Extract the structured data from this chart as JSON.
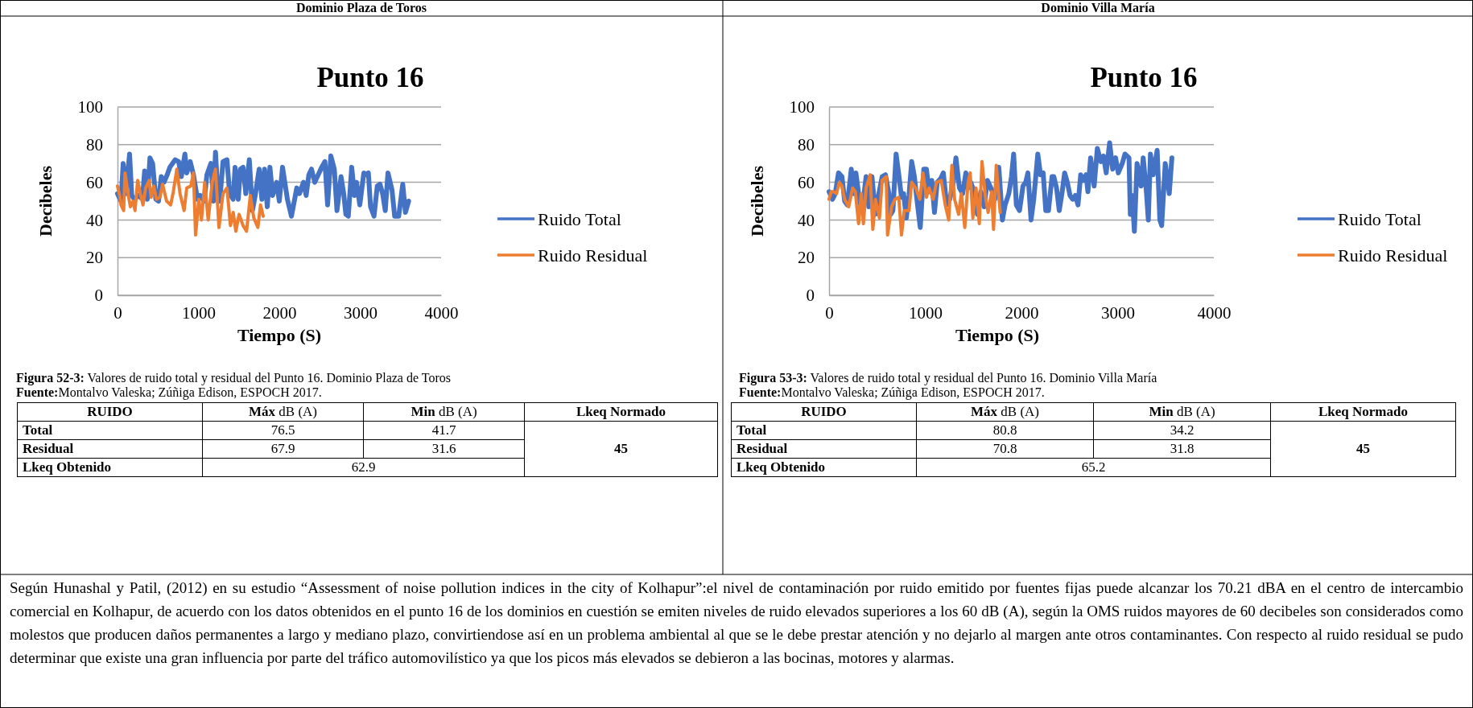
{
  "chart_data": [
    {
      "type": "line",
      "title": "Punto 16",
      "xlabel": "Tiempo (S)",
      "ylabel": "Decibeles",
      "xlim": [
        0,
        4000
      ],
      "xticks": [
        0,
        1000,
        2000,
        3000,
        4000
      ],
      "ylim": [
        0,
        100
      ],
      "yticks": [
        0,
        20,
        40,
        60,
        80,
        100
      ],
      "grid": "y",
      "legend": "right",
      "series": [
        {
          "name": "Ruido Total",
          "color": "#4472c4",
          "x": [
            0,
            43,
            70,
            103,
            149,
            176,
            209,
            259,
            308,
            335,
            368,
            401,
            434,
            474,
            507,
            541,
            574,
            614,
            647,
            713,
            756,
            789,
            833,
            856,
            899,
            939,
            988,
            1022,
            1071,
            1105,
            1154,
            1187,
            1211,
            1237,
            1264,
            1304,
            1353,
            1386,
            1430,
            1453,
            1493,
            1519,
            1552,
            1586,
            1629,
            1668,
            1702,
            1751,
            1785,
            1818,
            1851,
            1884,
            1917,
            1967,
            2000,
            2040,
            2100,
            2150,
            2216,
            2249,
            2299,
            2332,
            2365,
            2398,
            2438,
            2481,
            2524,
            2564,
            2597,
            2637,
            2680,
            2713,
            2763,
            2796,
            2823,
            2853,
            2895,
            2929,
            2955,
            2995,
            3045,
            3078,
            3101,
            3128,
            3171,
            3211,
            3244,
            3277,
            3310,
            3343,
            3393,
            3426,
            3476,
            3526,
            3559,
            3599
          ],
          "values": [
            54,
            50,
            70,
            54,
            75,
            53,
            51,
            53,
            51,
            66,
            51,
            73,
            70,
            51,
            50,
            63,
            60,
            64,
            68,
            72,
            71,
            63,
            75,
            65,
            71,
            64,
            51,
            53,
            50,
            64,
            70,
            50,
            76,
            57,
            50,
            71,
            72,
            54,
            51,
            68,
            51,
            67,
            68,
            54,
            72,
            45,
            53,
            67,
            51,
            67,
            47,
            68,
            53,
            60,
            50,
            68,
            51,
            42,
            57,
            54,
            60,
            53,
            64,
            67,
            60,
            64,
            68,
            71,
            48,
            74,
            67,
            45,
            63,
            54,
            43,
            42,
            68,
            53,
            60,
            48,
            65,
            64,
            65,
            47,
            42,
            58,
            59,
            54,
            45,
            65,
            56,
            42,
            42,
            59,
            44,
            50
          ]
        },
        {
          "name": "Ruido Residual",
          "color": "#ed7d31",
          "x": [
            0,
            27,
            43,
            76,
            93,
            126,
            159,
            192,
            216,
            249,
            282,
            315,
            348,
            391,
            415,
            448,
            481,
            524,
            557,
            607,
            657,
            690,
            733,
            773,
            823,
            856,
            906,
            939,
            965,
            1005,
            1038,
            1078,
            1121,
            1171,
            1211,
            1254,
            1304,
            1353,
            1396,
            1430,
            1463,
            1503,
            1552,
            1595,
            1642,
            1685,
            1735,
            1768,
            1801
          ],
          "values": [
            58,
            53,
            48,
            45,
            65,
            55,
            47,
            50,
            45,
            61,
            54,
            48,
            57,
            61,
            52,
            58,
            51,
            52,
            59,
            50,
            48,
            55,
            67,
            54,
            45,
            57,
            58,
            65,
            32,
            51,
            40,
            60,
            40,
            60,
            67,
            36,
            54,
            57,
            37,
            44,
            34,
            43,
            37,
            34,
            53,
            41,
            36,
            48,
            42
          ]
        }
      ],
      "annotations": [
        "Dominio Plaza de Toros",
        "Figura 52-3: Valores de ruido total y residual del Punto 16. Dominio Plaza de Toros",
        "Fuente:Montalvo Valeska; Zúñiga Edison, ESPOCH 2017.",
        "RUIDO",
        "Máx dB (A)",
        "Min dB (A)",
        "Lkeq Normado",
        "Total",
        "76.5",
        "41.7",
        "Residual",
        "67.9",
        "31.6",
        "45",
        "Lkeq Obtenido",
        "62.9"
      ]
    },
    {
      "type": "line",
      "title": "Punto 16",
      "xlabel": "Tiempo (S)",
      "ylabel": "Decibeles",
      "xlim": [
        0,
        4000
      ],
      "xticks": [
        0,
        1000,
        2000,
        3000,
        4000
      ],
      "ylim": [
        0,
        100
      ],
      "yticks": [
        0,
        20,
        40,
        60,
        80,
        100
      ],
      "grid": "y",
      "legend": "right",
      "series": [
        {
          "name": "Ruido Total",
          "color": "#4472c4",
          "x": [
            0,
            36,
            64,
            98,
            134,
            162,
            190,
            231,
            259,
            279,
            315,
            343,
            385,
            413,
            446,
            482,
            510,
            552,
            586,
            622,
            641,
            664,
            697,
            725,
            753,
            775,
            803,
            831,
            859,
            887,
            920,
            948,
            985,
            1012,
            1040,
            1068,
            1096,
            1124,
            1160,
            1188,
            1222,
            1255,
            1291,
            1319,
            1355,
            1389,
            1422,
            1445,
            1473,
            1514,
            1542,
            1578,
            1612,
            1646,
            1682,
            1724,
            1765,
            1802,
            1830,
            1869,
            1896,
            1919,
            1947,
            1980,
            2016,
            2044,
            2067,
            2100,
            2128,
            2170,
            2198,
            2226,
            2253,
            2281,
            2318,
            2337,
            2365,
            2393,
            2421,
            2449,
            2477,
            2505,
            2532,
            2560,
            2588,
            2616,
            2644,
            2672,
            2691,
            2719,
            2756,
            2789,
            2825,
            2853,
            2881,
            2917,
            2948,
            2979,
            3007,
            3048,
            3076,
            3118,
            3132,
            3152,
            3174,
            3202,
            3244,
            3266,
            3299,
            3319,
            3341,
            3369,
            3411,
            3439,
            3458,
            3495,
            3537,
            3564
          ],
          "values": [
            55,
            51,
            54,
            65,
            63,
            50,
            48,
            67,
            54,
            65,
            51,
            45,
            63,
            47,
            63,
            43,
            52,
            63,
            64,
            54,
            43,
            45,
            75,
            64,
            52,
            54,
            41,
            53,
            71,
            63,
            48,
            36,
            67,
            67,
            55,
            61,
            44,
            60,
            62,
            65,
            48,
            51,
            60,
            73,
            57,
            54,
            65,
            57,
            60,
            54,
            43,
            55,
            47,
            61,
            57,
            51,
            68,
            40,
            48,
            54,
            63,
            75,
            48,
            45,
            58,
            60,
            65,
            40,
            51,
            75,
            64,
            65,
            45,
            45,
            63,
            63,
            57,
            45,
            54,
            65,
            60,
            53,
            51,
            53,
            48,
            64,
            61,
            64,
            55,
            73,
            58,
            78,
            71,
            74,
            65,
            81,
            67,
            73,
            65,
            70,
            75,
            73,
            43,
            53,
            34,
            70,
            58,
            73,
            55,
            40,
            75,
            64,
            77,
            40,
            37,
            70,
            54,
            73
          ]
        },
        {
          "name": "Ruido Residual",
          "color": "#ed7d31",
          "x": [
            0,
            22,
            50,
            78,
            106,
            134,
            162,
            204,
            245,
            273,
            307,
            335,
            357,
            385,
            427,
            455,
            482,
            524,
            552,
            594,
            608,
            650,
            686,
            725,
            753,
            781,
            831,
            859,
            901,
            943,
            976,
            1012,
            1040,
            1082,
            1116,
            1166,
            1208,
            1244,
            1277,
            1305,
            1347,
            1375,
            1411,
            1445,
            1467,
            1495,
            1528,
            1562,
            1590,
            1626,
            1654,
            1690,
            1710,
            1738,
            1779
          ],
          "values": [
            51,
            55,
            55,
            54,
            60,
            58,
            51,
            47,
            57,
            55,
            38,
            54,
            38,
            57,
            64,
            35,
            51,
            41,
            61,
            63,
            32,
            47,
            51,
            52,
            32,
            45,
            45,
            60,
            57,
            51,
            65,
            52,
            57,
            51,
            60,
            61,
            48,
            40,
            69,
            51,
            43,
            54,
            36,
            60,
            65,
            41,
            57,
            38,
            71,
            52,
            44,
            55,
            35,
            69,
            44
          ]
        }
      ],
      "annotations": [
        "Dominio Villa María",
        "Figura 53-3: Valores de ruido total y residual del Punto 16. Dominio Villa María",
        "Fuente:Montalvo Valeska; Zúñiga Edison, ESPOCH 2017.",
        "RUIDO",
        "Máx dB (A)",
        "Min dB (A)",
        "Lkeq Normado",
        "Total",
        "80.8",
        "34.2",
        "Residual",
        "70.8",
        "31.8",
        "45",
        "Lkeq Obtenido",
        "65.2"
      ]
    },
    {
      "type": "other",
      "annotations": [
        "Según Hunashal y Patil, (2012)  en su estudio “Assessment of noise pollution indices in the city of Kolhapur”:el  nivel de contaminación por ruido emitido por fuentes fijas puede alcanzar los 70.21 dBA  en el centro de intercambio comercial en Kolhapur, de acuerdo con los datos obtenidos en el punto 16 de los dominios en cuestión  se emiten niveles de ruido  elevados superiores a los 60 dB (A), según la OMS  ruidos mayores de 60 decibeles son considerados como molestos que producen  daños permanentes a largo y mediano plazo, convirtiendose así en un problema ambiental al que se le debe prestar atención y no dejarlo al margen ante otros contaminantes. Con respecto al  ruido residual se pudo determinar que existe una gran influencia por parte del tráfico automovilístico ya que los picos más elevados se debieron a las bocinas, motores y alarmas."
      ]
    }
  ]
}
